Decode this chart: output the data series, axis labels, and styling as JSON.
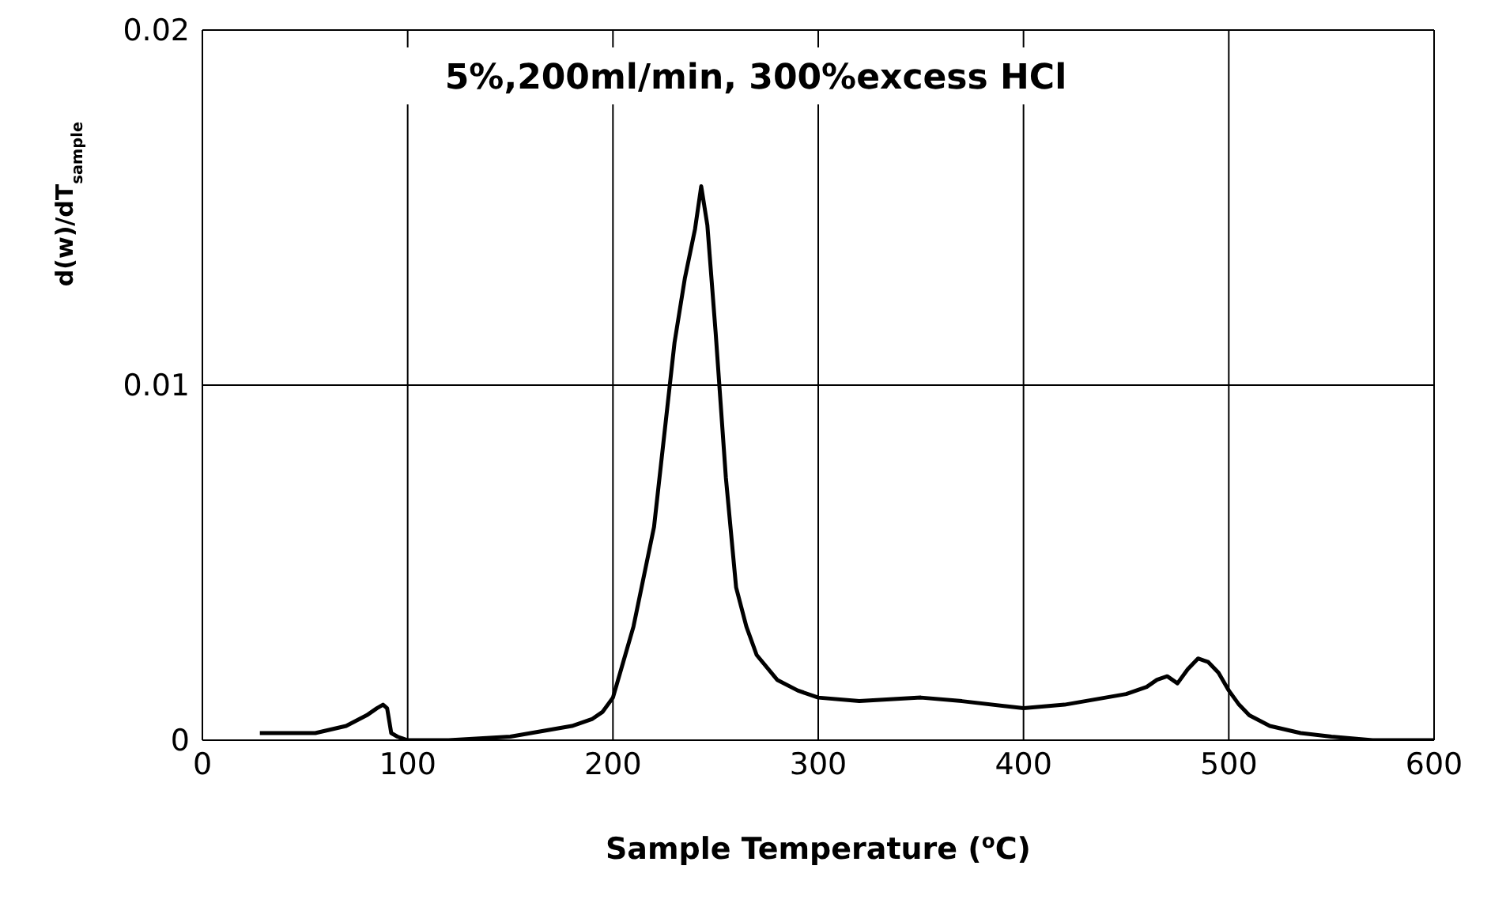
{
  "chart_data": {
    "type": "line",
    "title": "5%,200ml/min, 300%excess HCl",
    "xlabel": "Sample Temperature ($^{o}$C)",
    "ylabel": "d(w)/dT$_{sample}$",
    "x": [
      28,
      40,
      55,
      70,
      80,
      85,
      88,
      90,
      92,
      95,
      100,
      120,
      150,
      170,
      180,
      190,
      195,
      200,
      205,
      210,
      220,
      230,
      235,
      240,
      243,
      246,
      250,
      255,
      260,
      265,
      270,
      280,
      290,
      300,
      320,
      350,
      370,
      400,
      420,
      450,
      460,
      465,
      470,
      475,
      480,
      485,
      490,
      495,
      500,
      505,
      510,
      520,
      535,
      550,
      570,
      600
    ],
    "series": [
      {
        "color": "#000000",
        "values": [
          0.0002,
          0.0002,
          0.0002,
          0.0004,
          0.0007,
          0.0009,
          0.001,
          0.0009,
          0.0002,
          0.0001,
          0,
          0,
          0.0001,
          0.0003,
          0.0004,
          0.0006,
          0.0008,
          0.0012,
          0.0022,
          0.0032,
          0.006,
          0.0112,
          0.013,
          0.0144,
          0.0156,
          0.0145,
          0.0115,
          0.0074,
          0.0043,
          0.0032,
          0.0024,
          0.0017,
          0.0014,
          0.0012,
          0.0011,
          0.0012,
          0.0011,
          0.0009,
          0.001,
          0.0013,
          0.0015,
          0.0017,
          0.0018,
          0.0016,
          0.002,
          0.0023,
          0.0022,
          0.0019,
          0.0014,
          0.001,
          0.0007,
          0.0004,
          0.0002,
          0.0001,
          0,
          0
        ]
      }
    ],
    "xlim": [
      0,
      600
    ],
    "xticks": [
      0,
      100,
      200,
      300,
      400,
      500,
      600
    ],
    "ylim": [
      0,
      0.02
    ],
    "yticks": [
      0,
      0.01,
      0.02
    ],
    "grid": true,
    "legend": false,
    "marker": "none",
    "line_style": "solid"
  }
}
